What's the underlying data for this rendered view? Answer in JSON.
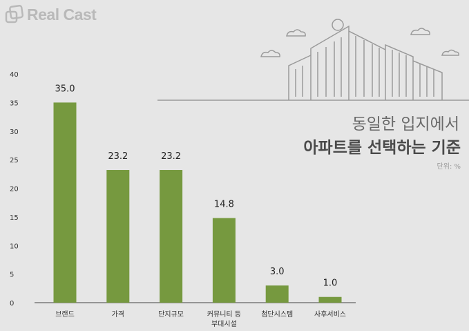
{
  "brand": "Real Cast",
  "title_line1": "동일한 입지에서",
  "title_line2": "아파트를 선택하는 기준",
  "unit": "단위: %",
  "colors": {
    "bar": "#76993f",
    "axis": "#444444",
    "illustration": "#9a9a9a"
  },
  "chart_data": {
    "type": "bar",
    "title": "동일한 입지에서 아파트를 선택하는 기준",
    "categories": [
      [
        "브랜드"
      ],
      [
        "가격"
      ],
      [
        "단지규모"
      ],
      [
        "커뮤니티 등",
        "부대시설"
      ],
      [
        "첨단시스템"
      ],
      [
        "사후서비스"
      ]
    ],
    "values": [
      35.0,
      23.2,
      23.2,
      14.8,
      3.0,
      1.0
    ],
    "value_labels": [
      "35.0",
      "23.2",
      "23.2",
      "14.8",
      "3.0",
      "1.0"
    ],
    "yticks": [
      0,
      5,
      10,
      15,
      20,
      25,
      30,
      35,
      40
    ],
    "ylim": [
      0,
      40
    ],
    "xlabel": "",
    "ylabel": "단위: %",
    "grid": false
  }
}
